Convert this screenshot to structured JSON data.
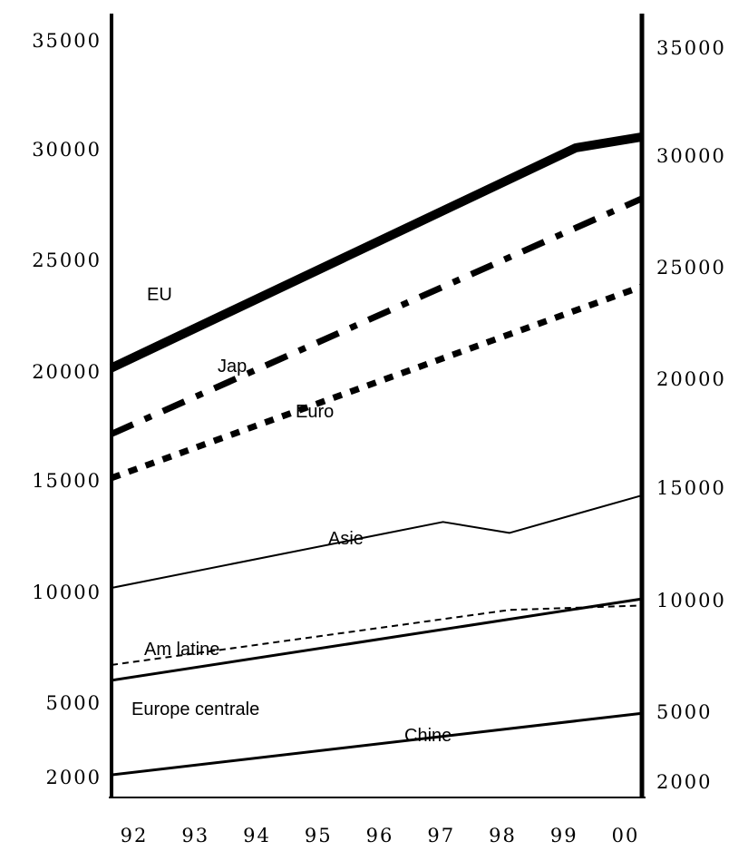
{
  "chart_data": {
    "type": "line",
    "title": "",
    "xlabel": "",
    "ylabel": "",
    "x_ticks": [
      "92",
      "93",
      "94",
      "95",
      "96",
      "97",
      "98",
      "99",
      "00"
    ],
    "y_ticks_left": [
      "35000",
      "30000",
      "25000",
      "20000",
      "15000",
      "10000",
      "5000",
      "2000"
    ],
    "y_ticks_right": [
      "35000",
      "30000",
      "25000",
      "20000",
      "15000",
      "10000",
      "5000",
      "2000"
    ],
    "grid": false,
    "legend": "inline labels",
    "series": [
      {
        "name": "EU",
        "style": "thick-solid",
        "points": [
          [
            "92",
            20000
          ],
          [
            "99",
            30000
          ],
          [
            "00",
            30500
          ]
        ]
      },
      {
        "name": "Jap",
        "style": "dash-dot",
        "points": [
          [
            "92",
            17000
          ],
          [
            "00",
            27700
          ]
        ]
      },
      {
        "name": "Euro",
        "style": "dotted-thick",
        "points": [
          [
            "92",
            15000
          ],
          [
            "00",
            23700
          ]
        ]
      },
      {
        "name": "Asie",
        "style": "thin-solid",
        "points": [
          [
            "92",
            10000
          ],
          [
            "97",
            13000
          ],
          [
            "98",
            12500
          ],
          [
            "00",
            14200
          ]
        ]
      },
      {
        "name": "Am latine",
        "style": "thin-dashed",
        "points": [
          [
            "92",
            6500
          ],
          [
            "98",
            9000
          ],
          [
            "00",
            9200
          ]
        ]
      },
      {
        "name": "Europe centrale",
        "style": "medium-solid",
        "points": [
          [
            "92",
            5800
          ],
          [
            "00",
            9500
          ]
        ]
      },
      {
        "name": "Chine",
        "style": "medium-solid",
        "points": [
          [
            "92",
            1500
          ],
          [
            "00",
            4300
          ]
        ]
      }
    ]
  }
}
